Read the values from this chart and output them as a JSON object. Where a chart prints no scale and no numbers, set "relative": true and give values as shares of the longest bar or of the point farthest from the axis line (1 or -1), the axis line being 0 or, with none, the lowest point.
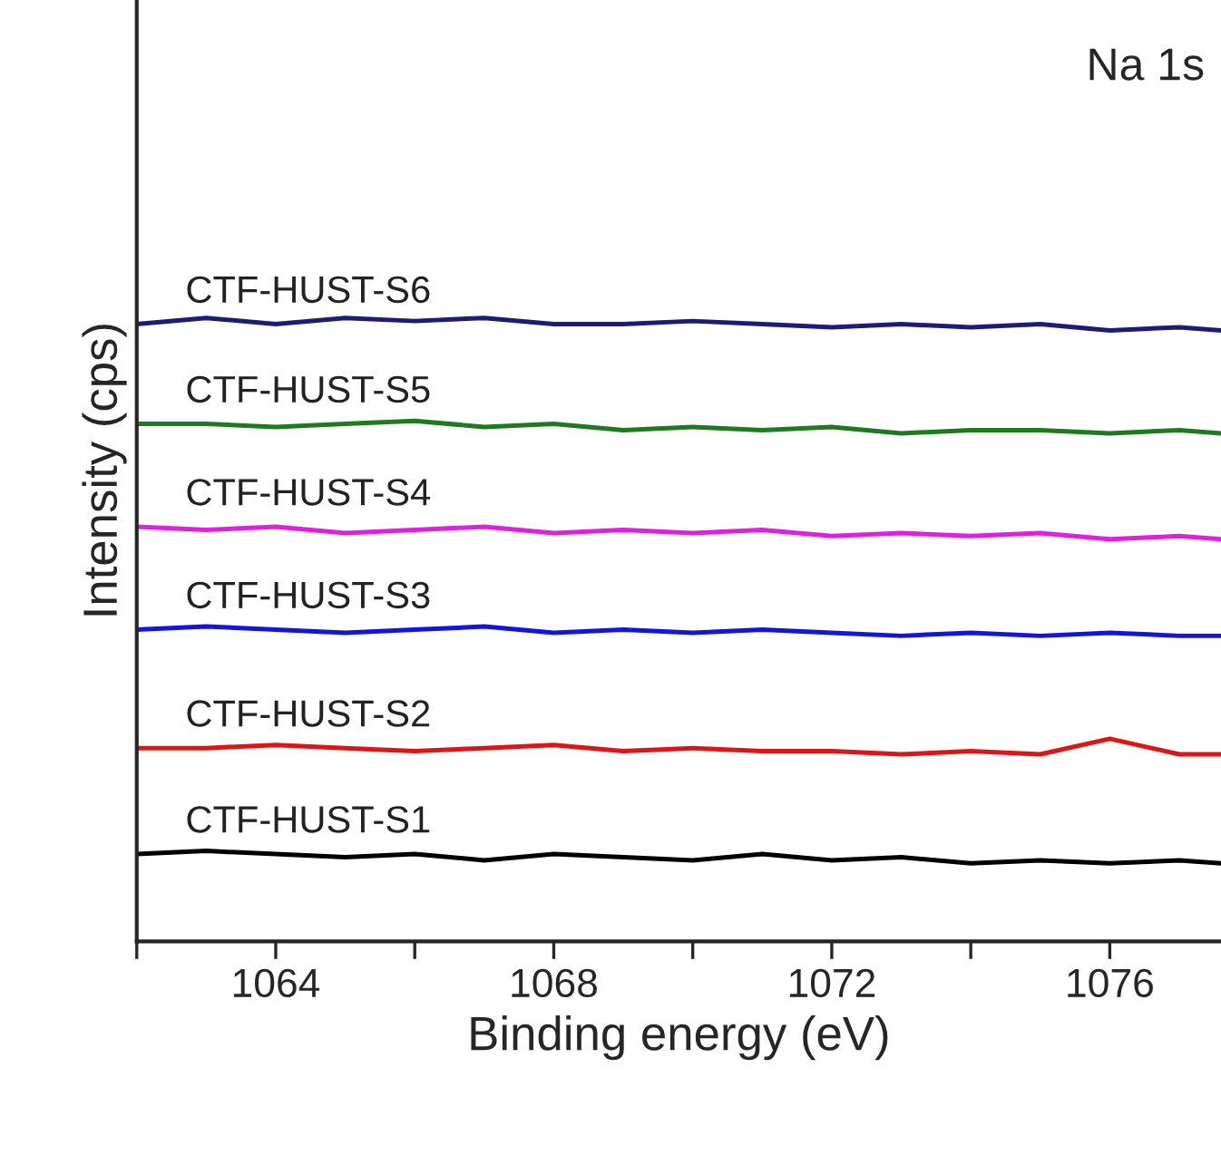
{
  "chart_data": {
    "type": "line",
    "relative": true,
    "xlabel": "Binding energy (eV)",
    "ylabel": "Intensity (cps)",
    "annotations": [
      "Na 1s"
    ],
    "x": [
      1062,
      1063,
      1064,
      1065,
      1066,
      1067,
      1068,
      1069,
      1070,
      1071,
      1072,
      1073,
      1074,
      1075,
      1076,
      1077,
      1077.6
    ],
    "xlim": [
      1062,
      1077.6
    ],
    "xticks": [
      {
        "value": 1062,
        "label": null
      },
      1064,
      {
        "value": 1066,
        "label": null
      },
      1068,
      {
        "value": 1070,
        "label": null
      },
      1072,
      {
        "value": 1074,
        "label": null
      },
      1076
    ],
    "grid": false,
    "legend": false,
    "marker": "none",
    "line_style": "solid",
    "series": [
      {
        "name": "CTF-HUST-S6",
        "color": "#1c1c78",
        "values": [
          0.99,
          1.0,
          0.99,
          1.0,
          0.995,
          1.0,
          0.99,
          0.99,
          0.995,
          0.99,
          0.985,
          0.99,
          0.985,
          0.99,
          0.98,
          0.985,
          0.98
        ]
      },
      {
        "name": "CTF-HUST-S5",
        "color": "#1f7a1f",
        "values": [
          0.83,
          0.83,
          0.825,
          0.83,
          0.835,
          0.825,
          0.83,
          0.82,
          0.825,
          0.82,
          0.825,
          0.815,
          0.82,
          0.82,
          0.815,
          0.82,
          0.815
        ]
      },
      {
        "name": "CTF-HUST-S4",
        "color": "#e020e0",
        "values": [
          0.665,
          0.66,
          0.665,
          0.655,
          0.66,
          0.665,
          0.655,
          0.66,
          0.655,
          0.66,
          0.65,
          0.655,
          0.65,
          0.655,
          0.645,
          0.65,
          0.645
        ]
      },
      {
        "name": "CTF-HUST-S3",
        "color": "#1414e0",
        "values": [
          0.5,
          0.505,
          0.5,
          0.495,
          0.5,
          0.505,
          0.495,
          0.5,
          0.495,
          0.5,
          0.495,
          0.49,
          0.495,
          0.49,
          0.495,
          0.49,
          0.49
        ]
      },
      {
        "name": "CTF-HUST-S2",
        "color": "#e01414",
        "values": [
          0.31,
          0.31,
          0.315,
          0.31,
          0.305,
          0.31,
          0.315,
          0.305,
          0.31,
          0.305,
          0.305,
          0.3,
          0.305,
          0.3,
          0.325,
          0.3,
          0.3
        ]
      },
      {
        "name": "CTF-HUST-S1",
        "color": "#000000",
        "values": [
          0.14,
          0.145,
          0.14,
          0.135,
          0.14,
          0.13,
          0.14,
          0.135,
          0.13,
          0.14,
          0.13,
          0.135,
          0.125,
          0.13,
          0.125,
          0.13,
          0.125
        ]
      }
    ]
  }
}
